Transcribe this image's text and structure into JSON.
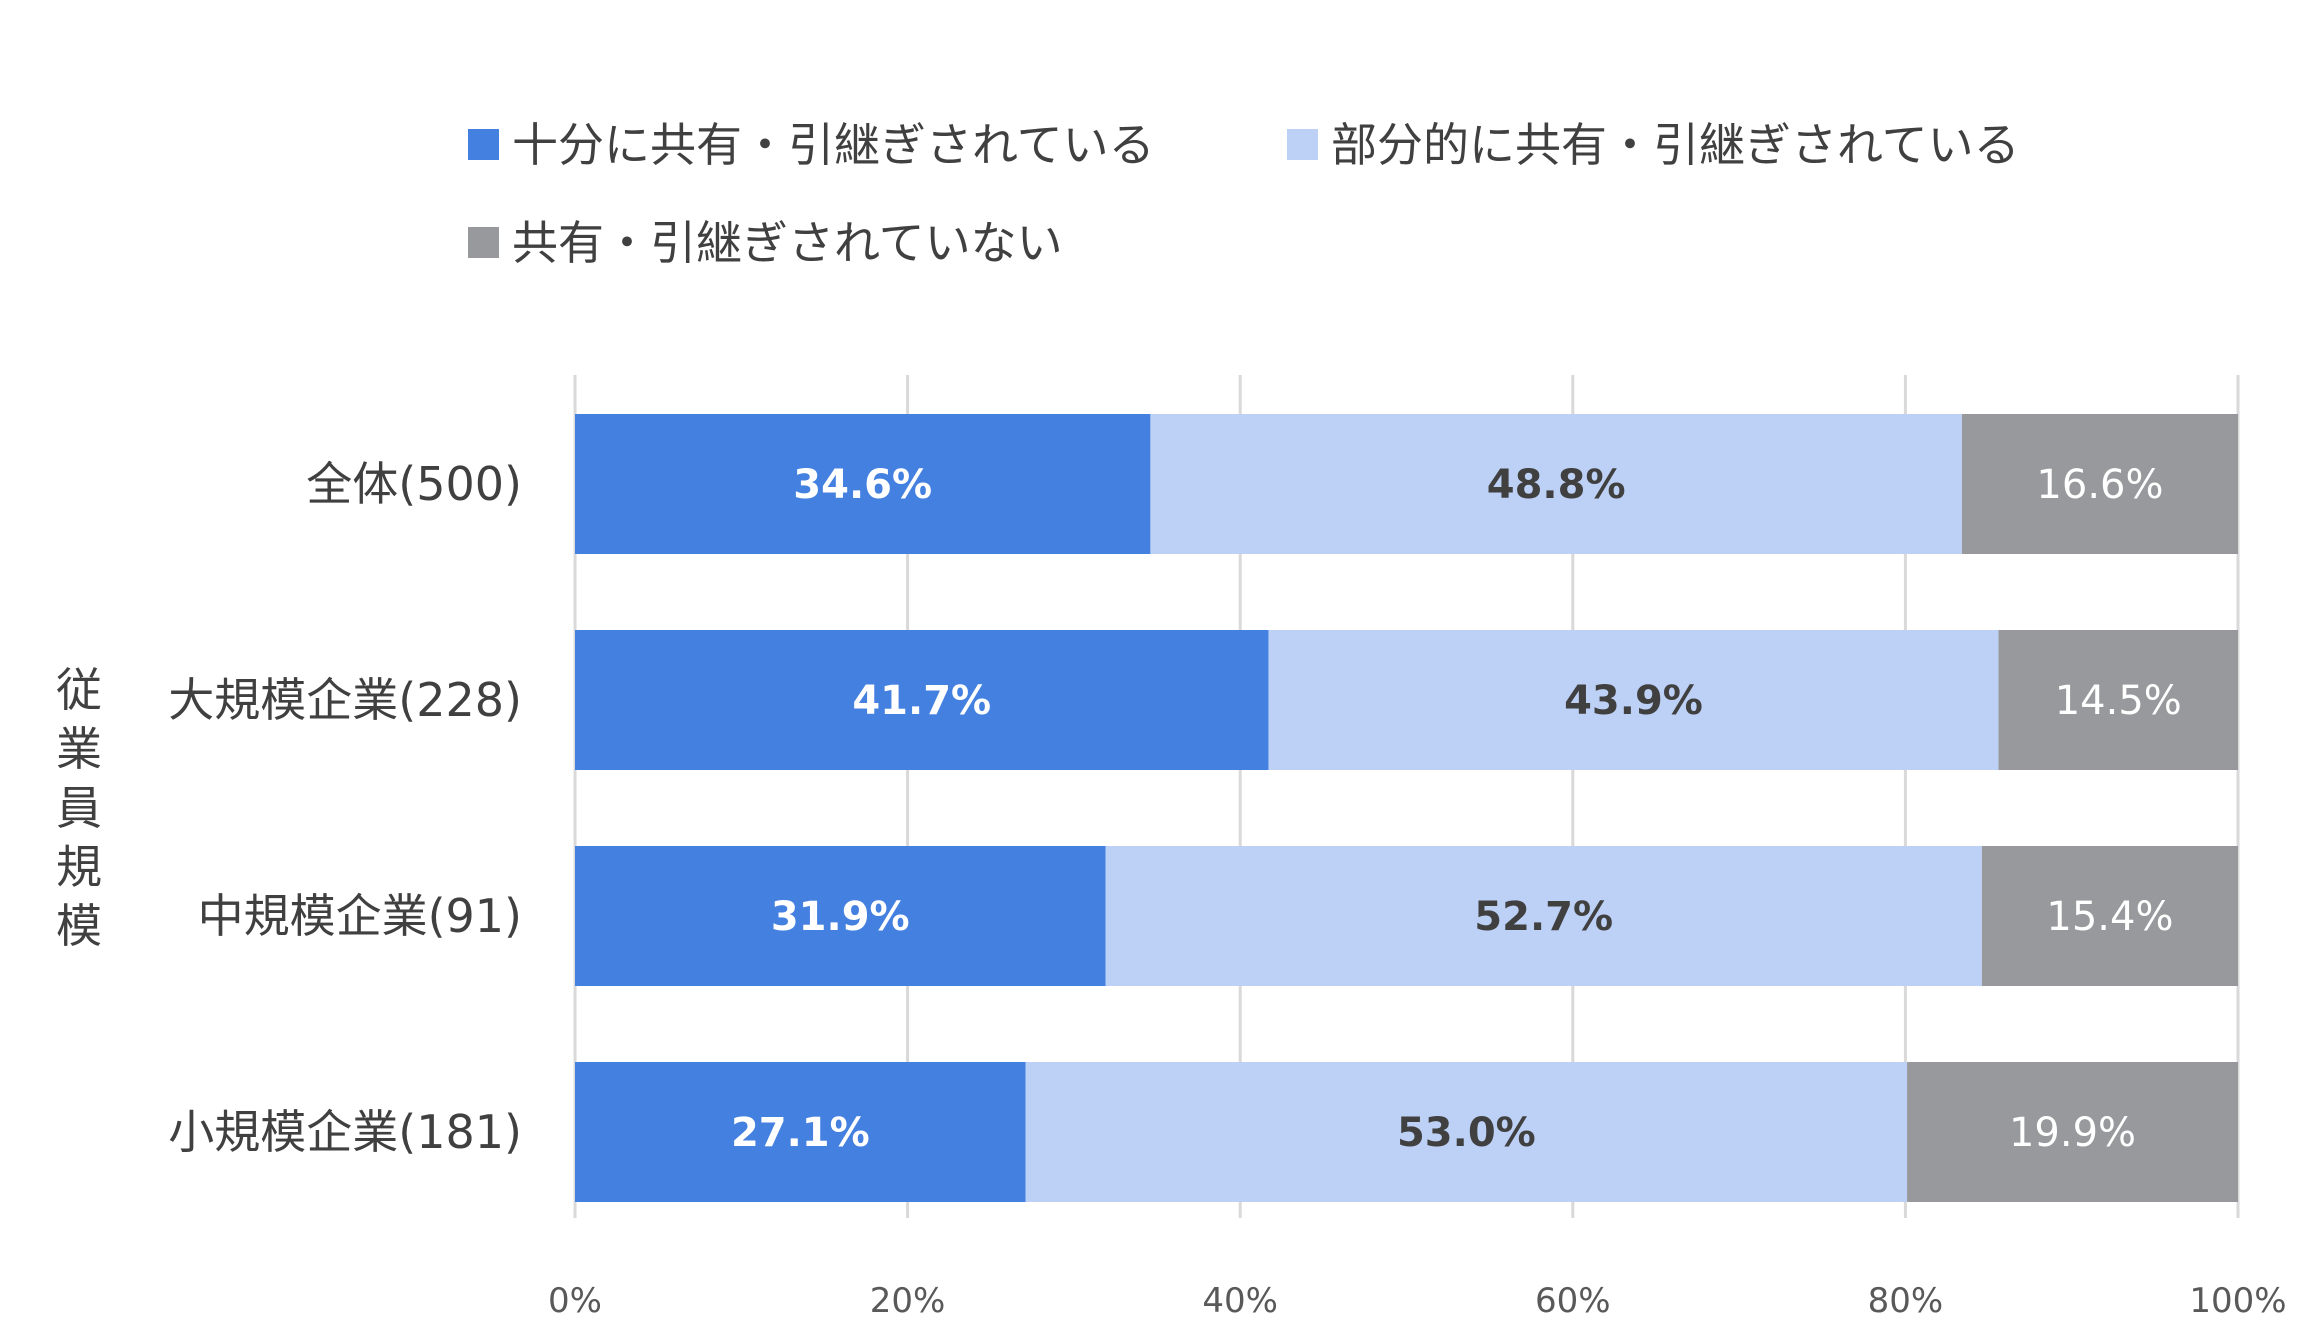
{
  "chart_data": {
    "type": "bar",
    "orientation": "horizontal",
    "stacked": true,
    "ylabel": "従業員規模",
    "xlabel": "",
    "xlim": [
      0,
      100
    ],
    "x_ticks": [
      "0%",
      "20%",
      "40%",
      "60%",
      "80%",
      "100%"
    ],
    "grid": true,
    "legend_position": "top",
    "categories": [
      "全体(500)",
      "大規模企業(228)",
      "中規模企業(91)",
      "小規模企業(181)"
    ],
    "series": [
      {
        "name": "十分に共有・引継ぎされている",
        "values": [
          34.6,
          41.7,
          31.9,
          27.1
        ],
        "labels": [
          "34.6%",
          "41.7%",
          "31.9%",
          "27.1%"
        ],
        "color": "#4480e0",
        "label_color": "#ffffff",
        "label_bold": true
      },
      {
        "name": "部分的に共有・引継ぎされている",
        "values": [
          48.8,
          43.9,
          52.7,
          53.0
        ],
        "labels": [
          "48.8%",
          "43.9%",
          "52.7%",
          "53.0%"
        ],
        "color": "#bdd0f5",
        "label_color": "#404040",
        "label_bold": true
      },
      {
        "name": "共有・引継ぎされていない",
        "values": [
          16.6,
          14.5,
          15.4,
          19.9
        ],
        "labels": [
          "16.6%",
          "14.5%",
          "15.4%",
          "19.9%"
        ],
        "color": "#98999c",
        "label_color": "#ffffff",
        "label_bold": false
      }
    ]
  }
}
